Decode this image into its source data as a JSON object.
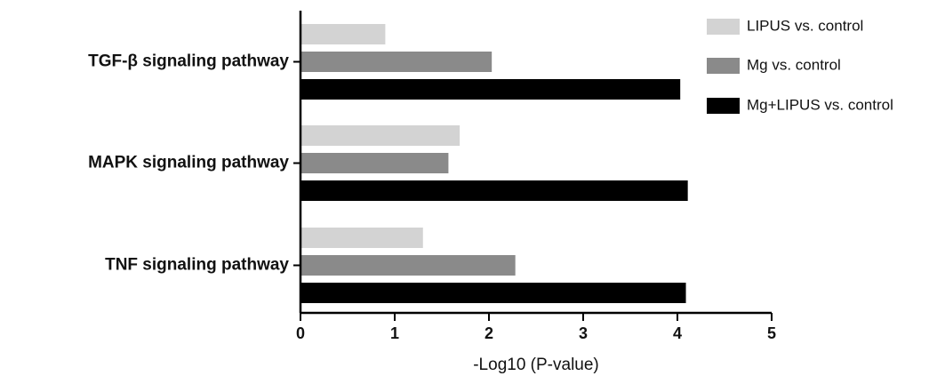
{
  "chart_data": {
    "type": "hbar",
    "categories": [
      "TGF-β signaling pathway",
      "MAPK signaling pathway",
      "TNF signaling pathway"
    ],
    "series": [
      {
        "name": "LIPUS vs. control",
        "color": "#d3d3d3",
        "values": [
          0.9,
          1.69,
          1.3
        ]
      },
      {
        "name": "Mg vs. control",
        "color": "#8a8a8a",
        "values": [
          2.03,
          1.57,
          2.28
        ]
      },
      {
        "name": "Mg+LIPUS vs. control",
        "color": "#000000",
        "values": [
          4.03,
          4.11,
          4.09
        ]
      }
    ],
    "xlabel": "-Log10 (P-value)",
    "xlim": [
      0,
      5
    ],
    "xticks": [
      0,
      1,
      2,
      3,
      4,
      5
    ],
    "legend": "upper right",
    "grid": false
  }
}
